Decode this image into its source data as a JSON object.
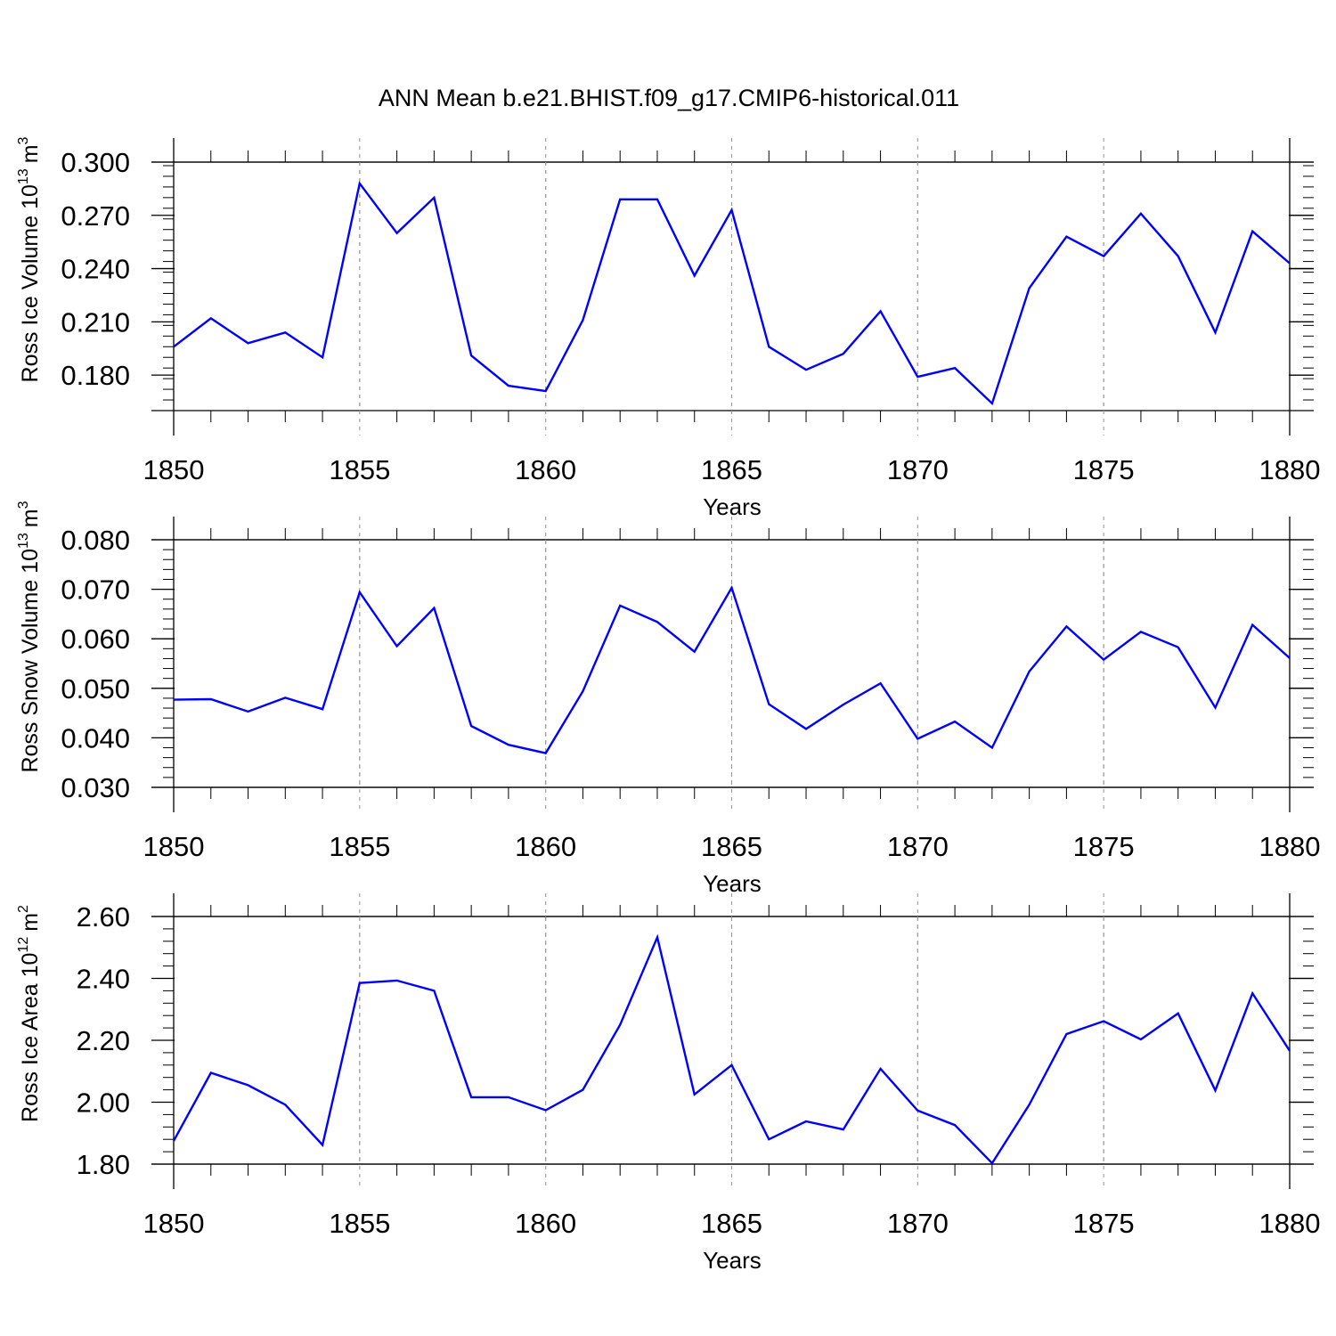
{
  "title": "ANN Mean b.e21.BHIST.f09_g17.CMIP6-historical.011",
  "colors": {
    "line": "#0000ff",
    "axis": "#000000",
    "grid": "#9a9a9a"
  },
  "chart_data": [
    {
      "type": "line",
      "ylabel_main": "Ross Ice Volume 10",
      "ylabel_exp": "13",
      "ylabel_unit": "m",
      "ylabel_unit_exp": "3",
      "xlabel": "Years",
      "xlim": [
        1850,
        1880
      ],
      "ylim": [
        0.16,
        0.3
      ],
      "yticks": [
        "0.180",
        "0.210",
        "0.240",
        "0.270",
        "0.300"
      ],
      "xticks": [
        "1850",
        "1855",
        "1860",
        "1865",
        "1870",
        "1875",
        "1880"
      ],
      "grid": "vertical dashed at major x ticks",
      "x": [
        1850,
        1851,
        1852,
        1853,
        1854,
        1855,
        1856,
        1857,
        1858,
        1859,
        1860,
        1861,
        1862,
        1863,
        1864,
        1865,
        1866,
        1867,
        1868,
        1869,
        1870,
        1871,
        1872,
        1873,
        1874,
        1875,
        1876,
        1877,
        1878,
        1879,
        1880
      ],
      "y": [
        0.196,
        0.212,
        0.198,
        0.204,
        0.19,
        0.288,
        0.26,
        0.28,
        0.191,
        0.174,
        0.171,
        0.211,
        0.279,
        0.279,
        0.236,
        0.273,
        0.196,
        0.183,
        0.192,
        0.216,
        0.179,
        0.184,
        0.164,
        0.229,
        0.258,
        0.247,
        0.271,
        0.247,
        0.204,
        0.261,
        0.243
      ]
    },
    {
      "type": "line",
      "ylabel_main": "Ross Snow Volume 10",
      "ylabel_exp": "13",
      "ylabel_unit": "m",
      "ylabel_unit_exp": "3",
      "xlabel": "Years",
      "xlim": [
        1850,
        1880
      ],
      "ylim": [
        0.03,
        0.08
      ],
      "yticks": [
        "0.030",
        "0.040",
        "0.050",
        "0.060",
        "0.070",
        "0.080"
      ],
      "xticks": [
        "1850",
        "1855",
        "1860",
        "1865",
        "1870",
        "1875",
        "1880"
      ],
      "grid": "vertical dashed at major x ticks",
      "x": [
        1850,
        1851,
        1852,
        1853,
        1854,
        1855,
        1856,
        1857,
        1858,
        1859,
        1860,
        1861,
        1862,
        1863,
        1864,
        1865,
        1866,
        1867,
        1868,
        1869,
        1870,
        1871,
        1872,
        1873,
        1874,
        1875,
        1876,
        1877,
        1878,
        1879,
        1880
      ],
      "y": [
        0.0477,
        0.0478,
        0.0453,
        0.0481,
        0.0458,
        0.0694,
        0.0585,
        0.0662,
        0.0424,
        0.0386,
        0.0369,
        0.0494,
        0.0667,
        0.0634,
        0.0574,
        0.0703,
        0.0468,
        0.0418,
        0.0467,
        0.051,
        0.0398,
        0.0433,
        0.038,
        0.0534,
        0.0625,
        0.0558,
        0.0614,
        0.0583,
        0.0461,
        0.0628,
        0.0561
      ]
    },
    {
      "type": "line",
      "ylabel_main": "Ross Ice Area 10",
      "ylabel_exp": "12",
      "ylabel_unit": "m",
      "ylabel_unit_exp": "2",
      "xlabel": "Years",
      "xlim": [
        1850,
        1880
      ],
      "ylim": [
        1.8,
        2.6
      ],
      "yticks": [
        "1.80",
        "2.00",
        "2.20",
        "2.40",
        "2.60"
      ],
      "xticks": [
        "1850",
        "1855",
        "1860",
        "1865",
        "1870",
        "1875",
        "1880"
      ],
      "grid": "vertical dashed at major x ticks",
      "x": [
        1850,
        1851,
        1852,
        1853,
        1854,
        1855,
        1856,
        1857,
        1858,
        1859,
        1860,
        1861,
        1862,
        1863,
        1864,
        1865,
        1866,
        1867,
        1868,
        1869,
        1870,
        1871,
        1872,
        1873,
        1874,
        1875,
        1876,
        1877,
        1878,
        1879,
        1880
      ],
      "y": [
        1.875,
        2.095,
        2.055,
        1.992,
        1.862,
        2.385,
        2.393,
        2.36,
        2.016,
        2.016,
        1.974,
        2.04,
        2.25,
        2.533,
        2.025,
        2.12,
        1.88,
        1.938,
        1.912,
        2.108,
        1.973,
        1.926,
        1.803,
        1.992,
        2.22,
        2.262,
        2.203,
        2.287,
        2.038,
        2.352,
        2.166
      ]
    }
  ]
}
